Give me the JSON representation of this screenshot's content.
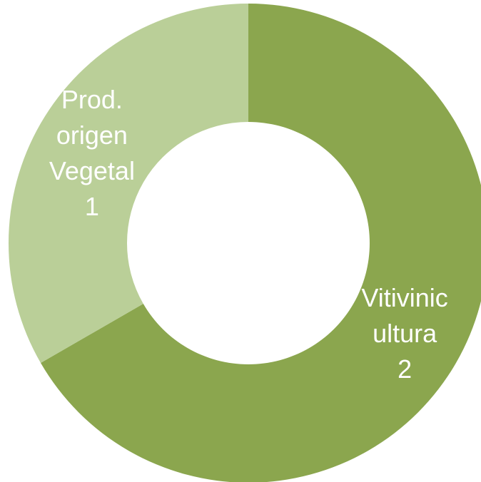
{
  "chart_data": {
    "type": "donut",
    "categories": [
      "Vitivinicultura",
      "Prod. origen Vegetal"
    ],
    "values": [
      2,
      1
    ],
    "colors": [
      "#8ba64e",
      "#bacf98"
    ]
  }
}
